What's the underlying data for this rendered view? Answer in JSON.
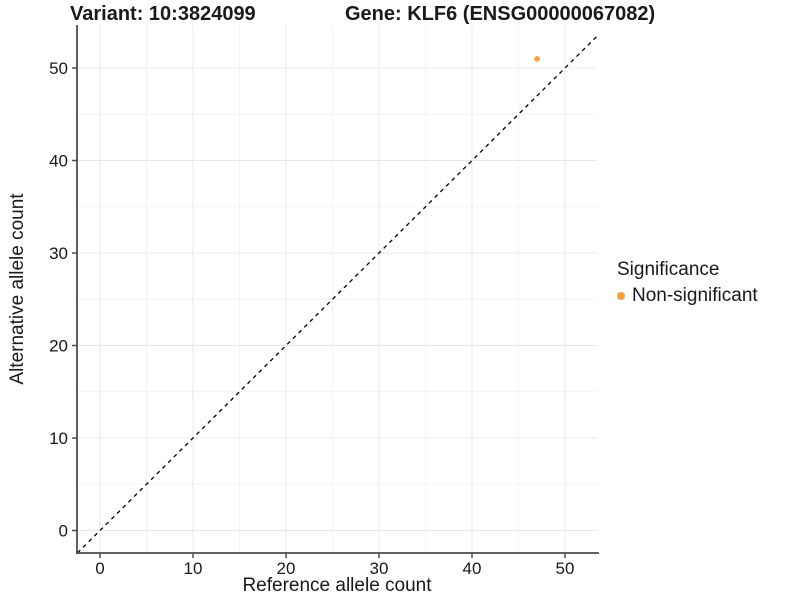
{
  "header": {
    "variant_title": "Variant: 10:3824099",
    "gene_title": "Gene: KLF6 (ENSG00000067082)"
  },
  "chart_data": {
    "type": "scatter",
    "title": "Variant: 10:3824099    Gene: KLF6 (ENSG00000067082)",
    "xlabel": "Reference allele count",
    "ylabel": "Alternative allele count",
    "x_ticks": [
      0,
      10,
      20,
      30,
      40,
      50
    ],
    "y_ticks": [
      0,
      10,
      20,
      30,
      40,
      50
    ],
    "x_minor_ticks": [
      5,
      15,
      25,
      35,
      45
    ],
    "y_minor_ticks": [
      5,
      15,
      25,
      35,
      45
    ],
    "xlim": [
      -2.47,
      53.44
    ],
    "ylim": [
      -2.43,
      54.65
    ],
    "grid": "major-and-minor",
    "reference_line": {
      "equation": "y = x",
      "style": "dashed",
      "color": "#000000"
    },
    "series": [
      {
        "name": "Non-significant",
        "color": "#F9A03C",
        "points": [
          {
            "x": 47,
            "y": 51
          }
        ]
      }
    ],
    "legend": {
      "position": "right",
      "title": "Significance",
      "items": [
        {
          "label": "Non-significant",
          "color": "#F9A03C"
        }
      ]
    },
    "palette": {
      "point_color": "#F9A03C",
      "grid_major": "#E8E8E8",
      "grid_minor": "#F3F3F3",
      "axis_line": "#4D4D4D",
      "text": "#1A1A1A",
      "dashed_line": "#000000"
    }
  }
}
